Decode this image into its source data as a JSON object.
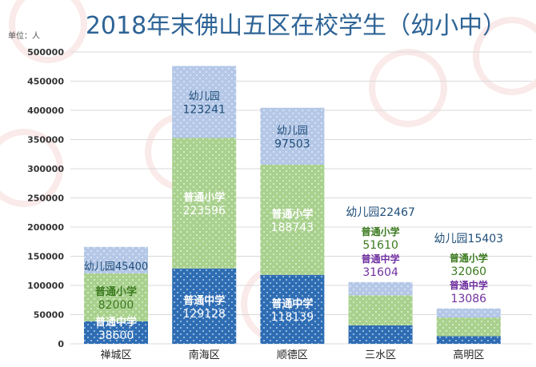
{
  "chart_data": {
    "type": "bar",
    "stacked": true,
    "title": "2018年末佛山五区在校学生（幼小中）",
    "unit_label": "单位：人",
    "categories": [
      "禅城区",
      "南海区",
      "顺德区",
      "三水区",
      "高明区"
    ],
    "series": [
      {
        "name": "普通中学",
        "values": [
          38600,
          129128,
          118139,
          31604,
          13086
        ],
        "color": "#2e6db4"
      },
      {
        "name": "普通小学",
        "values": [
          82000,
          223596,
          188743,
          51610,
          32060
        ],
        "color": "#a9d18e"
      },
      {
        "name": "幼儿园",
        "values": [
          45400,
          123241,
          97503,
          22467,
          15403
        ],
        "color": "#b4c7e7"
      }
    ],
    "label_mode": [
      "inside",
      "inside",
      "inside",
      "above",
      "above"
    ],
    "label_colors": {
      "inside_default": "#ffffff",
      "kindergarten": "#1f4e79",
      "primary_outside": "#3a7a1e",
      "middle_outside": "#7030a0"
    },
    "ylim": [
      0,
      500000
    ],
    "yticks": [
      0,
      50000,
      100000,
      150000,
      200000,
      250000,
      300000,
      350000,
      400000,
      450000,
      500000
    ],
    "grid": true,
    "xlabel": "",
    "ylabel": ""
  }
}
